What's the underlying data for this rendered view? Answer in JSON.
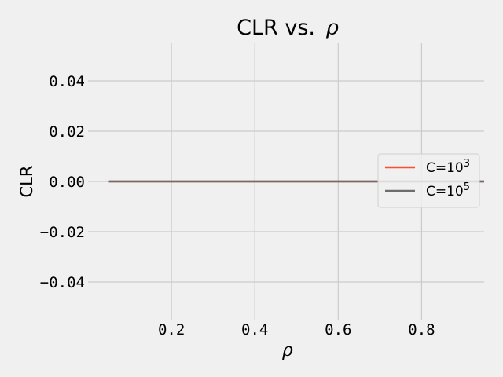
{
  "chart_data": {
    "type": "line",
    "title": "CLR vs.",
    "title_symbol": "ρ",
    "xlabel": "ρ",
    "ylabel": "CLR",
    "xlim": [
      0.0,
      0.95
    ],
    "ylim": [
      -0.055,
      0.055
    ],
    "x_ticks": [
      0.2,
      0.4,
      0.6,
      0.8
    ],
    "x_tick_labels": [
      "0.2",
      "0.4",
      "0.6",
      "0.8"
    ],
    "y_ticks": [
      0.04,
      0.02,
      0.0,
      -0.02,
      -0.04
    ],
    "y_tick_labels": [
      "0.04",
      "0.02",
      "0.00",
      "−0.02",
      "−0.04"
    ],
    "grid": true,
    "legend_position": "center-right",
    "series": [
      {
        "name": "C=10",
        "exponent": "3",
        "color": "#fc4f30",
        "x": [
          0.05,
          0.95
        ],
        "y": [
          0.0,
          0.0
        ]
      },
      {
        "name": "C=10",
        "exponent": "5",
        "color": "#6d6d6d",
        "x": [
          0.05,
          0.95
        ],
        "y": [
          0.0,
          0.0
        ]
      }
    ]
  }
}
